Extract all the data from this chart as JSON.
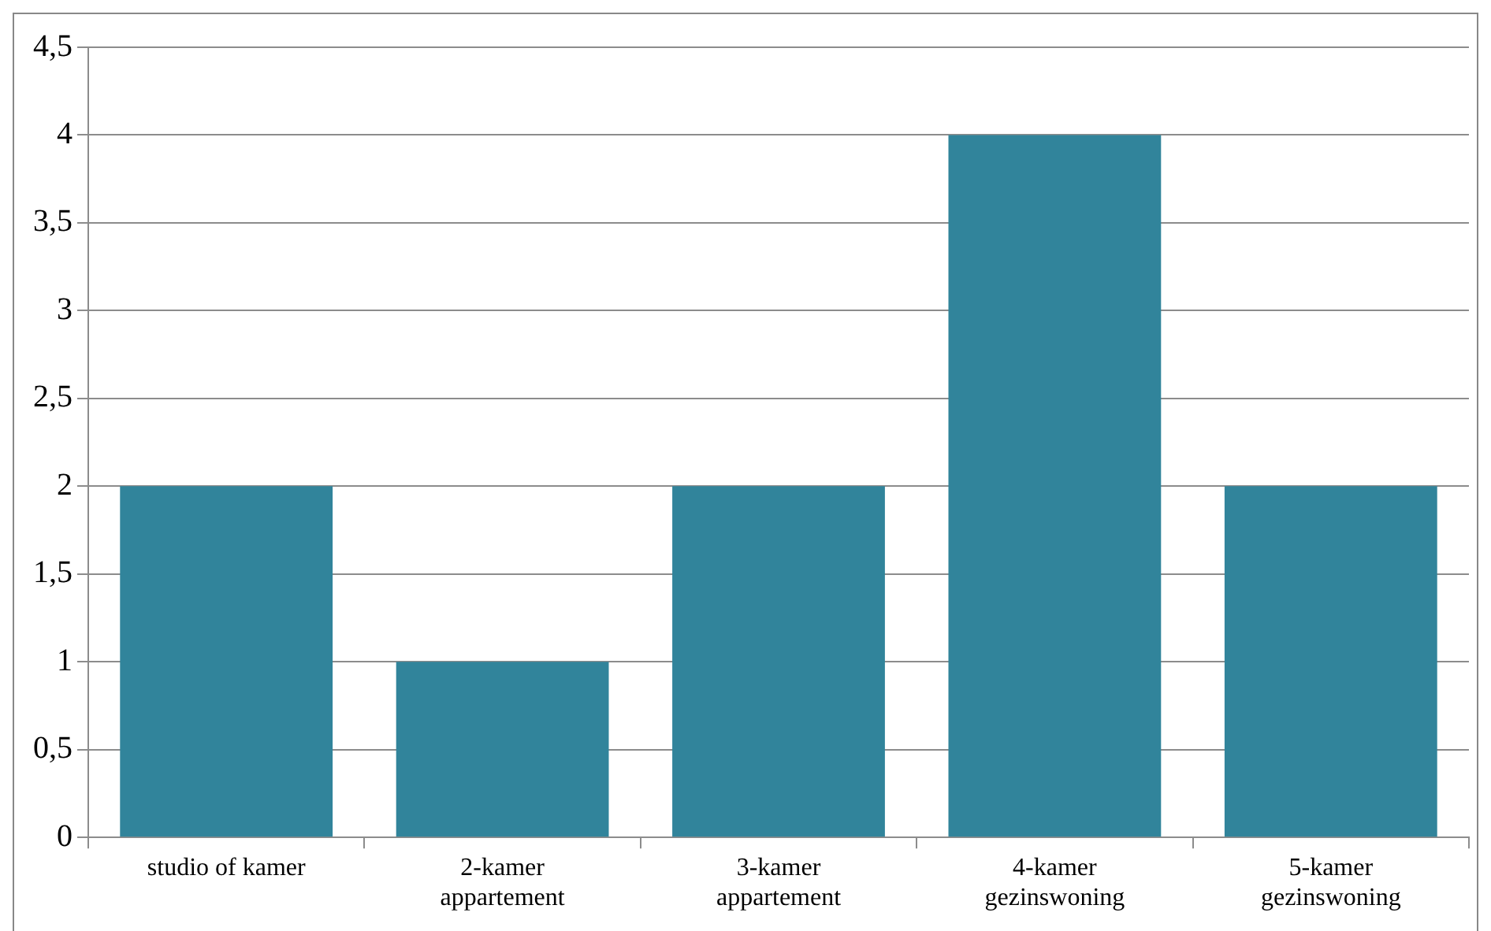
{
  "chart_data": {
    "type": "bar",
    "categories": [
      "studio of kamer",
      "2-kamer appartement",
      "3-kamer appartement",
      "4-kamer gezinswoning",
      "5-kamer gezinswoning"
    ],
    "values": [
      2,
      1,
      2,
      4,
      2
    ],
    "color": "#31849b",
    "ylim": [
      0,
      4.5
    ],
    "yticks": [
      0,
      {
        "value": 0.5,
        "label": "0,5"
      },
      1,
      {
        "value": 1.5,
        "label": "1,5"
      },
      2,
      {
        "value": 2.5,
        "label": "2,5"
      },
      3,
      {
        "value": 3.5,
        "label": "3,5"
      },
      4,
      {
        "value": 4.5,
        "label": "4,5"
      }
    ],
    "grid": "y",
    "legend": false
  }
}
